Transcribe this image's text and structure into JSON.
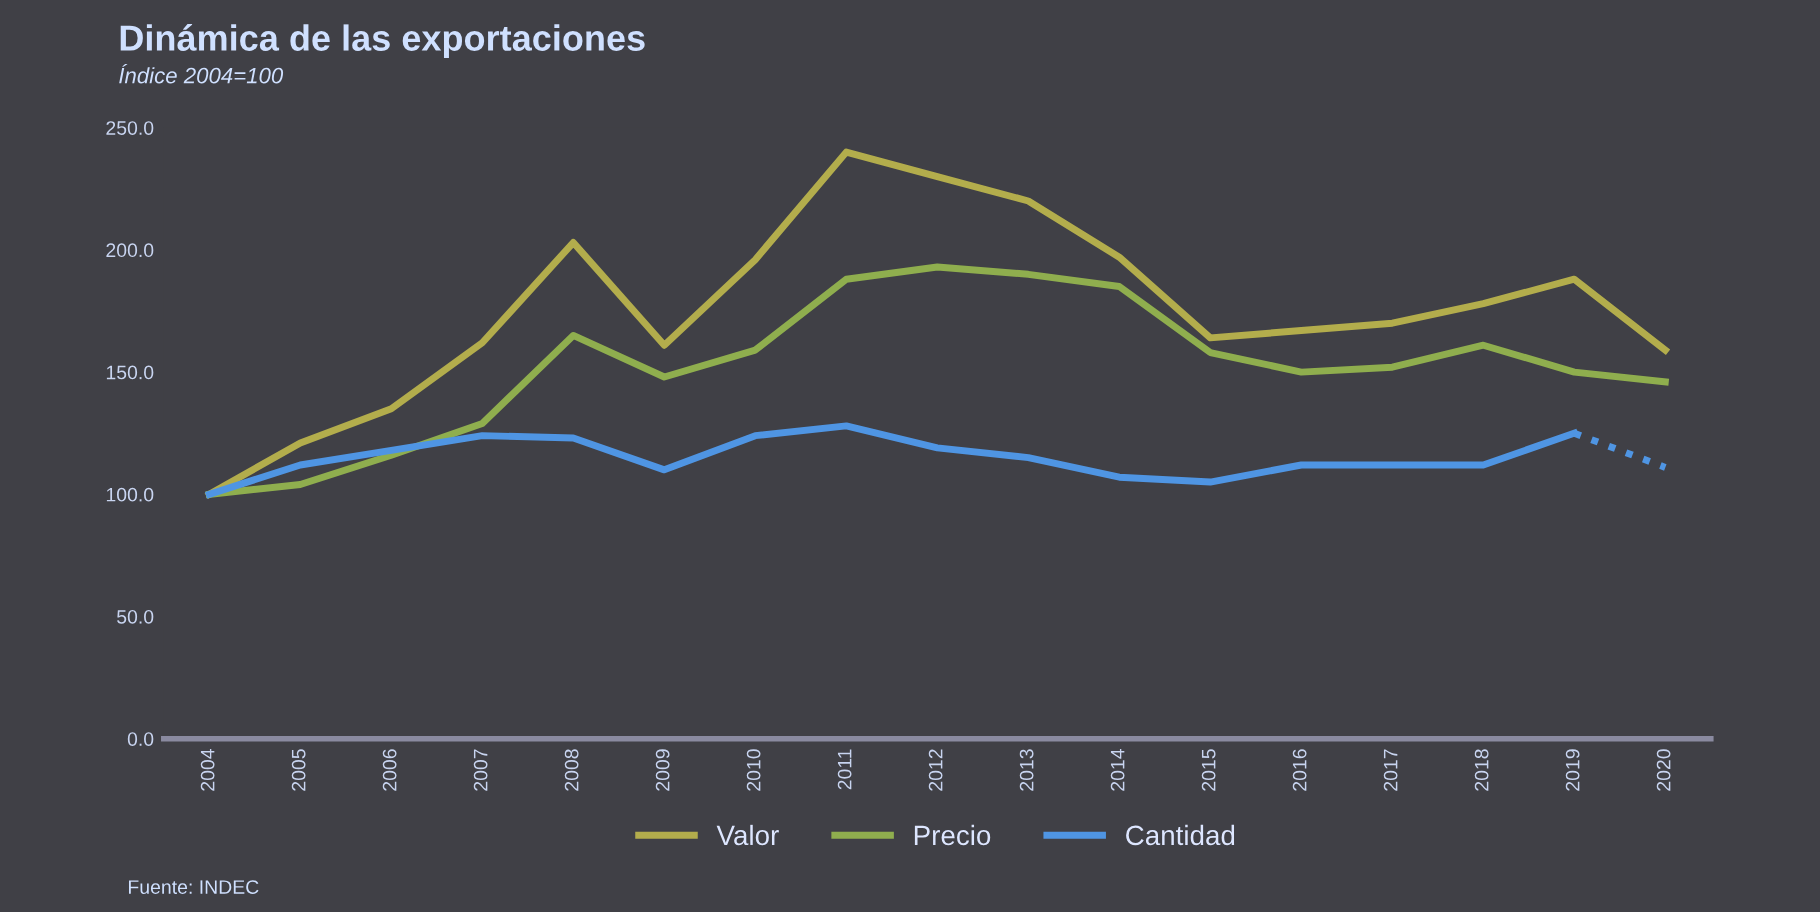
{
  "chart_data": {
    "type": "line",
    "title": "Dinámica de las exportaciones",
    "subtitle": "Índice 2004=100",
    "annotations": [
      "Fuente: INDEC"
    ],
    "categories": [
      "2004",
      "2005",
      "2006",
      "2007",
      "2008",
      "2009",
      "2010",
      "2011",
      "2012",
      "2013",
      "2014",
      "2015",
      "2016",
      "2017",
      "2018",
      "2019",
      "2020"
    ],
    "series": [
      {
        "name": "Valor",
        "color": "#b3ad4c",
        "values": [
          100,
          121,
          135,
          162,
          203,
          161,
          196,
          240,
          230,
          220,
          197,
          164,
          167,
          170,
          178,
          188,
          159
        ]
      },
      {
        "name": "Precio",
        "color": "#8fae4e",
        "values": [
          100,
          104,
          116,
          129,
          165,
          148,
          159,
          188,
          193,
          190,
          185,
          158,
          150,
          152,
          161,
          150,
          146
        ]
      },
      {
        "name": "Cantidad",
        "color": "#4f95e3",
        "values": [
          100,
          112,
          118,
          124,
          123,
          110,
          124,
          128,
          119,
          115,
          107,
          105,
          112,
          112,
          112,
          125,
          null
        ]
      },
      {
        "color": "#4f95e3",
        "line_style": "dotted",
        "values": [
          null,
          null,
          null,
          null,
          null,
          null,
          null,
          null,
          null,
          null,
          null,
          null,
          null,
          null,
          null,
          125,
          111
        ]
      }
    ],
    "ylim": [
      0,
      250
    ],
    "yticks": [
      {
        "value": 0,
        "label": "0.0"
      },
      {
        "value": 50,
        "label": "50.0"
      },
      {
        "value": 100,
        "label": "100.0"
      },
      {
        "value": 150,
        "label": "150.0"
      },
      {
        "value": 200,
        "label": "200.0"
      },
      {
        "value": 250,
        "label": "250.0"
      }
    ],
    "grid": false,
    "legend": "bottom",
    "marker": "none",
    "line_style": "solid"
  }
}
